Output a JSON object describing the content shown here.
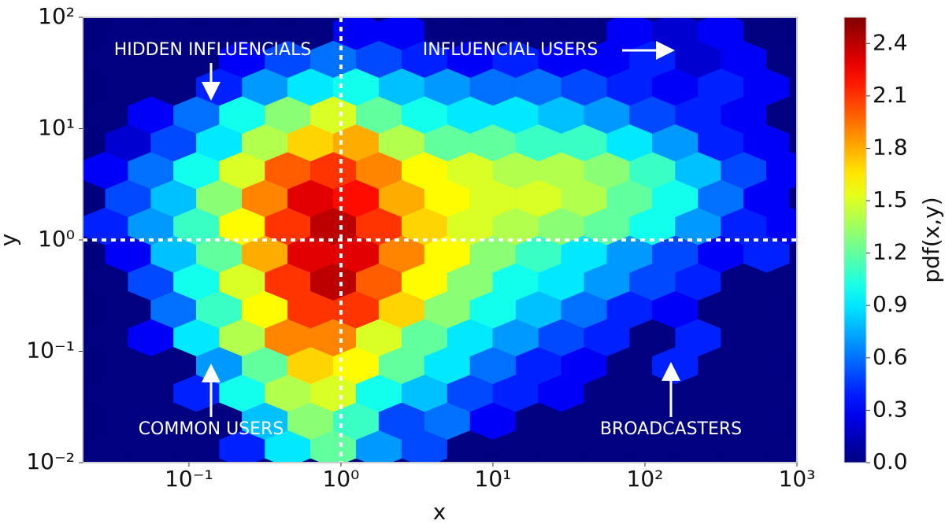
{
  "chart_data": {
    "type": "hexbin",
    "xlabel": "x",
    "ylabel": "y",
    "colorbar_label": "pdf(x,y)",
    "log_x": true,
    "log_y": true,
    "xlim": [
      0.02,
      1000
    ],
    "ylim": [
      0.01,
      100
    ],
    "xticks": [
      {
        "value": 0.1,
        "label": "10⁻¹"
      },
      {
        "value": 1,
        "label": "10⁰"
      },
      {
        "value": 10,
        "label": "10¹"
      },
      {
        "value": 100,
        "label": "10²"
      },
      {
        "value": 1000,
        "label": "10³"
      }
    ],
    "yticks": [
      {
        "value": 0.01,
        "label": "10⁻²"
      },
      {
        "value": 0.1,
        "label": "10⁻¹"
      },
      {
        "value": 1,
        "label": "10⁰"
      },
      {
        "value": 10,
        "label": "10¹"
      },
      {
        "value": 100,
        "label": "10²"
      }
    ],
    "clim": [
      0,
      2.55
    ],
    "cticks": [
      {
        "value": 0,
        "label": "0.0"
      },
      0.3,
      0.6,
      0.9,
      1.2,
      1.5,
      1.8,
      2.1,
      2.4
    ],
    "colormap": "jet",
    "vlines": [
      1
    ],
    "hlines": [
      1
    ],
    "annotations": [
      "HIDDEN INFLUENCIALS",
      "INFLUENCIAL USERS",
      "COMMON USERS",
      "BROADCASTERS"
    ],
    "x_even": [
      0.0282,
      0.0562,
      0.112,
      0.224,
      0.447,
      0.891,
      1.78,
      3.55,
      7.08,
      14.1,
      28.2,
      56.2,
      112,
      224,
      447,
      891
    ],
    "x_odd": [
      0.0398,
      0.0794,
      0.158,
      0.316,
      0.631,
      1.26,
      2.51,
      5.01,
      10,
      20,
      39.8,
      79.4,
      158,
      316,
      631
    ],
    "rows_y": [
      0.0133,
      0.0237,
      0.0422,
      0.075,
      0.133,
      0.237,
      0.422,
      0.75,
      1.33,
      2.37,
      4.22,
      7.5,
      13.3,
      23.7,
      42.2,
      75
    ],
    "values": [
      [
        0,
        0,
        0,
        0.4,
        0.9,
        1.2,
        0.7,
        0.5,
        0,
        0,
        0,
        0,
        0,
        0,
        0,
        0
      ],
      [
        0,
        0,
        0,
        0.8,
        1.3,
        1.1,
        0.5,
        0.6,
        0.3,
        0,
        0,
        0,
        0,
        0,
        0
      ],
      [
        0,
        0,
        0.4,
        1.0,
        1.4,
        1.5,
        1.0,
        0.8,
        0.5,
        0.4,
        0.3,
        0,
        0,
        0,
        0,
        0
      ],
      [
        0,
        0,
        0.7,
        1.2,
        1.7,
        1.6,
        1.2,
        0.9,
        0.6,
        0.4,
        0.3,
        0,
        0.4,
        0,
        0
      ],
      [
        0,
        0.3,
        0.9,
        1.4,
        1.9,
        1.9,
        1.5,
        1.2,
        0.9,
        0.7,
        0.5,
        0.4,
        0,
        0.4,
        0,
        0
      ],
      [
        0,
        0.6,
        1.1,
        1.6,
        2.1,
        2.1,
        1.7,
        1.3,
        1.0,
        0.8,
        0.6,
        0.4,
        0.3,
        0,
        0
      ],
      [
        0,
        0.5,
        1.0,
        1.5,
        2.1,
        2.4,
        2.0,
        1.6,
        1.3,
        1.0,
        0.9,
        0.7,
        0.5,
        0.4,
        0,
        0
      ],
      [
        0.3,
        0.8,
        1.2,
        1.8,
        2.3,
        2.3,
        1.9,
        1.6,
        1.3,
        1.1,
        0.9,
        0.7,
        0.5,
        0.3,
        0.4
      ],
      [
        0.4,
        0.7,
        1.1,
        1.6,
        2.1,
        2.4,
        2.1,
        1.7,
        1.5,
        1.4,
        1.3,
        1.2,
        1.0,
        0.7,
        0.4,
        0.3
      ],
      [
        0.5,
        0.8,
        1.3,
        1.9,
        2.3,
        2.2,
        1.8,
        1.6,
        1.5,
        1.5,
        1.4,
        1.2,
        1.0,
        0.6,
        0.3
      ],
      [
        0.3,
        0.6,
        1.0,
        1.5,
        2.0,
        2.1,
        1.9,
        1.6,
        1.5,
        1.4,
        1.4,
        1.3,
        1.1,
        0.8,
        0.5,
        0.3
      ],
      [
        0.2,
        0.5,
        0.9,
        1.4,
        1.7,
        1.8,
        1.4,
        1.2,
        1.2,
        1.1,
        1.1,
        0.9,
        0.7,
        0.4,
        0.3
      ],
      [
        0,
        0.3,
        0.6,
        1.0,
        1.3,
        1.5,
        1.2,
        1.0,
        0.9,
        0.9,
        0.8,
        0.7,
        0.5,
        0.4,
        0.3,
        0
      ],
      [
        0,
        0,
        0.4,
        0.7,
        0.9,
        1.0,
        0.8,
        0.7,
        0.6,
        0.6,
        0.5,
        0.4,
        0.3,
        0.4,
        0.3
      ],
      [
        0,
        0,
        0,
        0.3,
        0.5,
        0.6,
        0.5,
        0.4,
        0.3,
        0.4,
        0.3,
        0.3,
        0.4,
        0.2,
        0.3,
        0
      ],
      [
        0,
        0,
        0,
        0,
        0,
        0.3,
        0.3,
        0,
        0,
        0,
        0,
        0.3,
        0.2,
        0.3,
        0
      ]
    ]
  }
}
